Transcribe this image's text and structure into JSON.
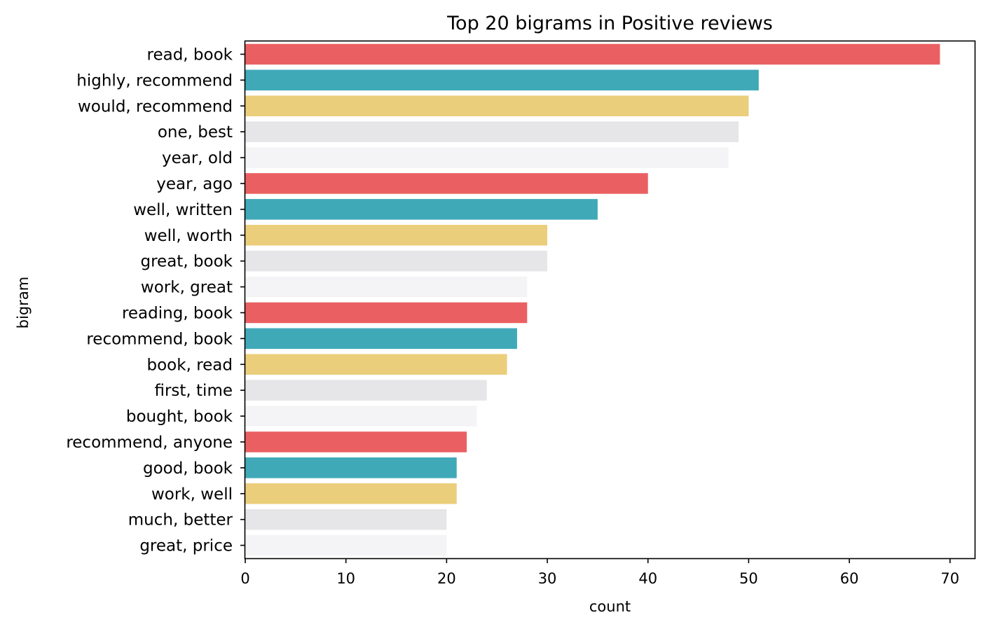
{
  "chart_data": {
    "type": "bar",
    "orientation": "horizontal",
    "title": "Top 20 bigrams in Positive reviews",
    "xlabel": "count",
    "ylabel": "bigram",
    "categories": [
      "read, book",
      "highly, recommend",
      "would, recommend",
      "one, best",
      "year, old",
      "year, ago",
      "well, written",
      "well, worth",
      "great, book",
      "work, great",
      "reading, book",
      "recommend, book",
      "book, read",
      "first, time",
      "bought, book",
      "recommend, anyone",
      "good, book",
      "work, well",
      "much, better",
      "great, price"
    ],
    "values": [
      69,
      51,
      50,
      49,
      48,
      40,
      35,
      30,
      30,
      28,
      28,
      27,
      26,
      24,
      23,
      22,
      21,
      21,
      20,
      20
    ],
    "xlim": [
      0,
      72.45
    ],
    "xticks": [
      "0",
      "10",
      "20",
      "30",
      "40",
      "50",
      "60",
      "70"
    ],
    "grid": false,
    "legend": "none",
    "colors": [
      "#ea6062",
      "#40a9b8",
      "#ebce7b",
      "#e6e6e8",
      "#f4f4f6"
    ]
  }
}
